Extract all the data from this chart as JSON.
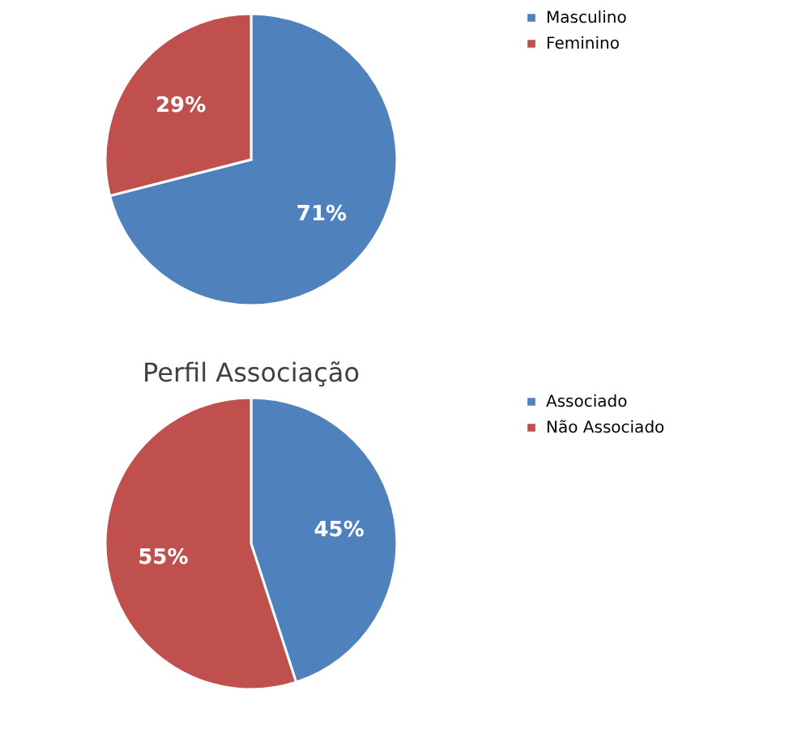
{
  "chart_data": [
    {
      "type": "pie",
      "categories": [
        "Masculino",
        "Feminino"
      ],
      "values": [
        71,
        29
      ],
      "colors": [
        "#4f81bd",
        "#c0504d"
      ],
      "value_labels": [
        "71%",
        "29%"
      ],
      "legend": "right"
    },
    {
      "type": "pie",
      "title": "Perfil Associação",
      "categories": [
        "Associado",
        "Não Associado"
      ],
      "values": [
        45,
        55
      ],
      "colors": [
        "#4f81bd",
        "#c0504d"
      ],
      "value_labels": [
        "45%",
        "55%"
      ],
      "legend": "right"
    }
  ]
}
